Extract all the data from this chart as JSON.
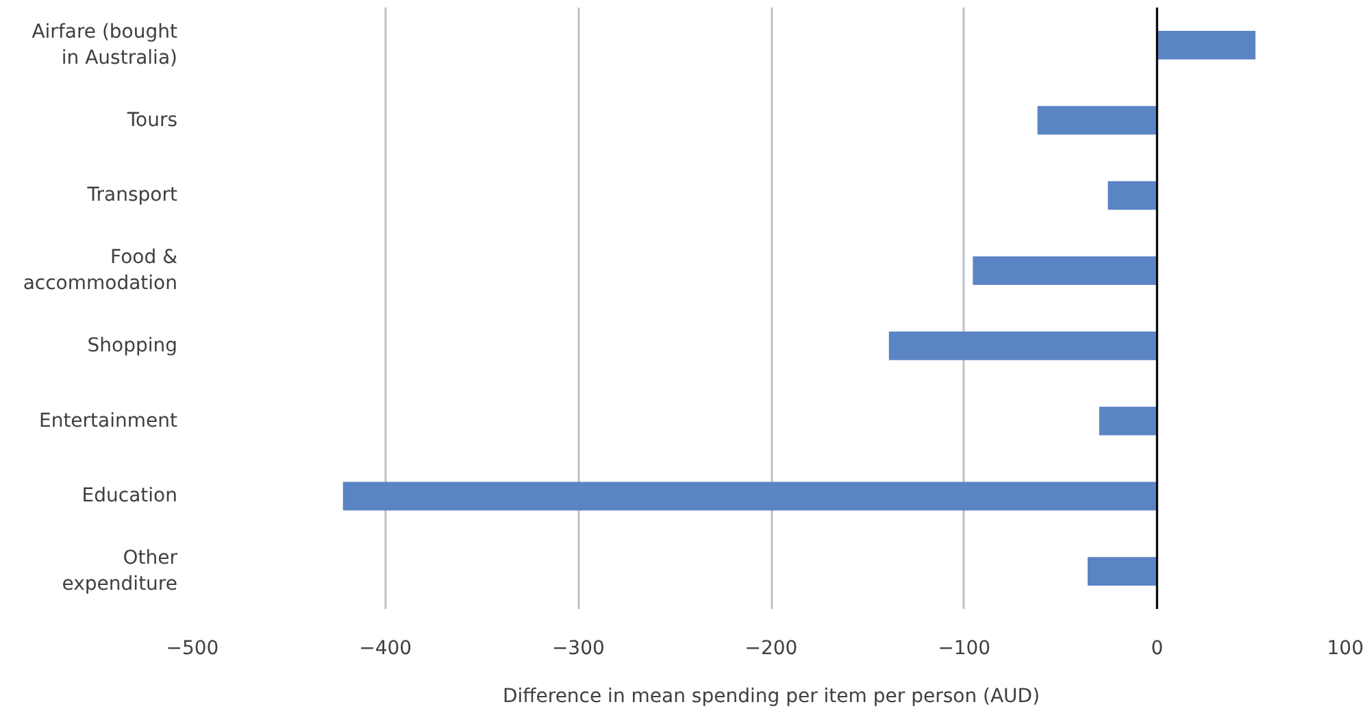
{
  "chart_data": {
    "type": "bar",
    "orientation": "horizontal",
    "xlabel": "Difference in mean spending per item per person (AUD)",
    "categories": [
      "Airfare (bought in Australia)",
      "Tours",
      "Transport",
      "Food & accommodation",
      "Shopping",
      "Entertainment",
      "Education",
      "Other expenditure"
    ],
    "series": [
      {
        "color": "#5b84c4",
        "values": [
          51,
          -62,
          -25.5,
          -95.5,
          -139,
          -30,
          -422,
          -36
        ]
      }
    ],
    "xlim": [
      -500,
      100
    ],
    "xticks": [
      -500,
      -400,
      -300,
      -200,
      -100,
      0,
      100
    ],
    "grid": "x",
    "ref_lines": [
      {
        "axis": "x",
        "value": 0,
        "color": "#000000"
      }
    ]
  }
}
